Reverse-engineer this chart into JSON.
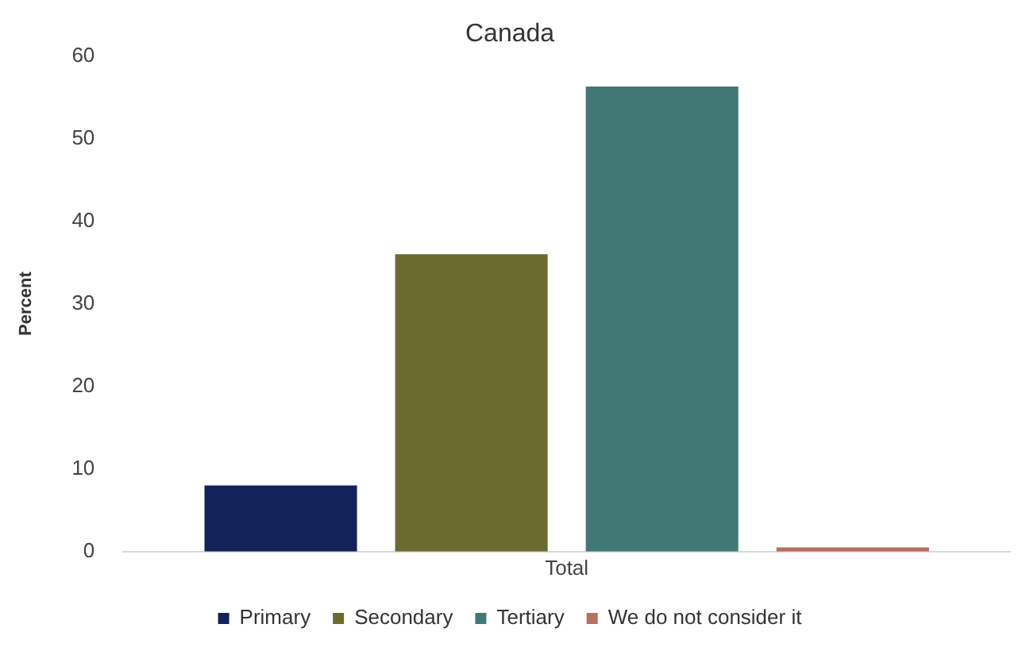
{
  "chart_data": {
    "type": "bar",
    "title": "Canada",
    "ylabel": "Percent",
    "categories": [
      "Total"
    ],
    "series": [
      {
        "name": "Primary",
        "color": "#14225a",
        "values": [
          8
        ]
      },
      {
        "name": "Secondary",
        "color": "#6b6b30",
        "values": [
          36
        ]
      },
      {
        "name": "Tertiary",
        "color": "#417876",
        "values": [
          56.3
        ]
      },
      {
        "name": "We do not consider it",
        "color": "#b5705e",
        "values": [
          0.5
        ]
      }
    ],
    "ylim": [
      0,
      60
    ],
    "yticks": [
      0,
      10,
      20,
      30,
      40,
      50,
      60
    ],
    "grid": false,
    "legend": "bottom"
  }
}
